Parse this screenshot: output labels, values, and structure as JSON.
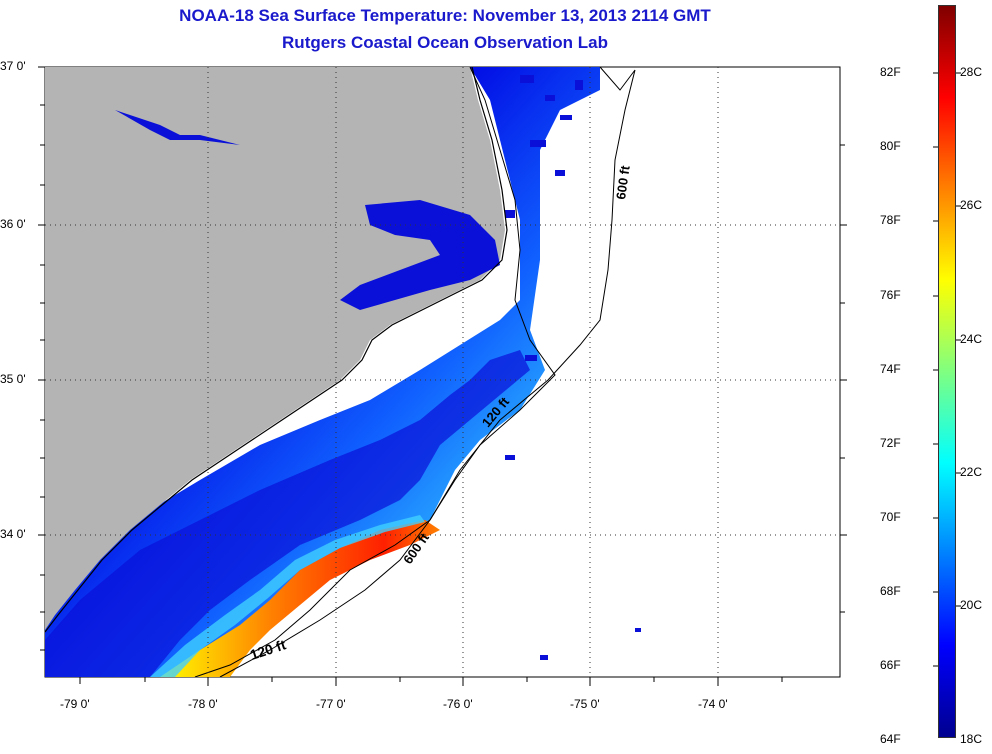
{
  "title": {
    "line1": "NOAA-18 Sea Surface Temperature:  November 13, 2013 2114 GMT",
    "line2": "Rutgers Coastal Ocean Observation Lab"
  },
  "map": {
    "lat_labels": [
      "37 0'",
      "36 0'",
      "35 0'",
      "34 0'"
    ],
    "lon_labels": [
      "-79 0'",
      "-78 0'",
      "-77 0'",
      "-76 0'",
      "-75 0'",
      "-74 0'"
    ],
    "contour_labels": [
      "600 ft",
      "120 ft",
      "600 ft",
      "120 ft"
    ]
  },
  "colorbar": {
    "fahrenheit_labels": [
      "82F",
      "80F",
      "78F",
      "76F",
      "74F",
      "72F",
      "70F",
      "68F",
      "66F",
      "64F"
    ],
    "celsius_labels": [
      "28C",
      "26C",
      "24C",
      "22C",
      "20C",
      "18C"
    ],
    "colors": [
      "#00008f",
      "#0000ff",
      "#0080ff",
      "#00ffff",
      "#80ff80",
      "#ffff00",
      "#ff8000",
      "#ff0000",
      "#800000"
    ]
  },
  "colors": {
    "land": "#b4b4b4",
    "title": "#1a1acc"
  }
}
